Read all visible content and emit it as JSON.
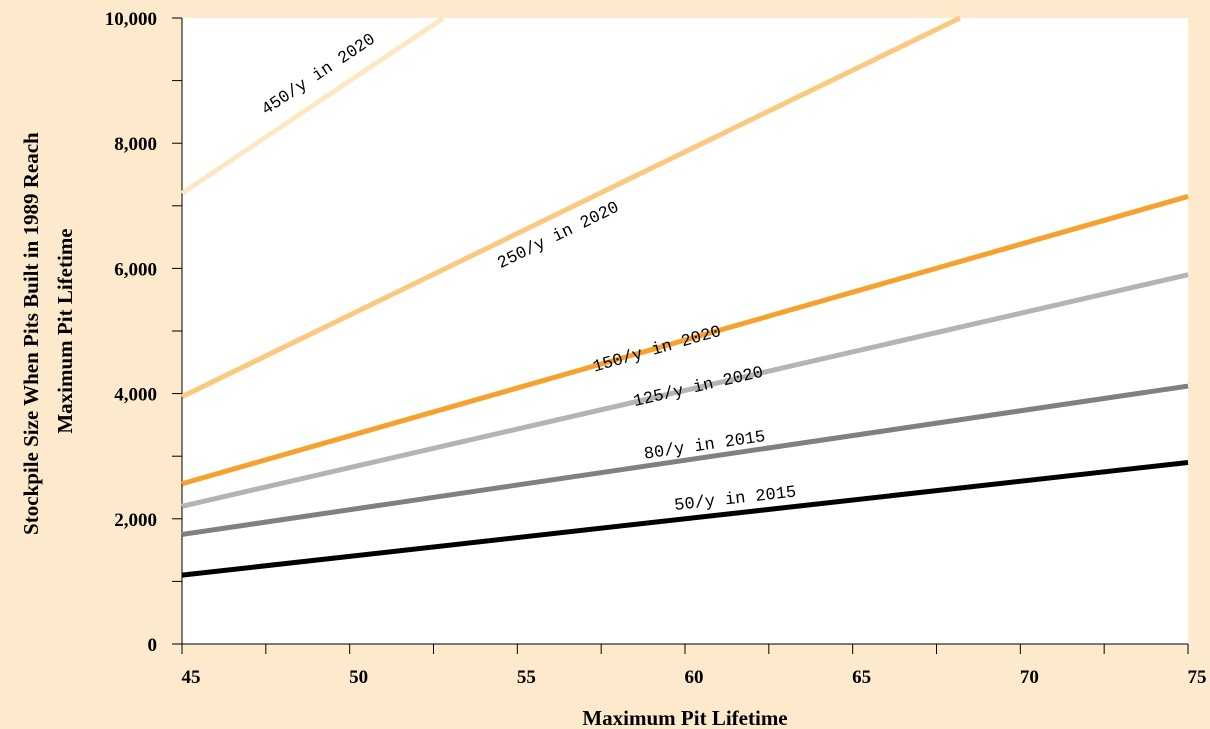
{
  "chart_data": {
    "type": "line",
    "xlabel": "Maximum Pit Lifetime",
    "ylabel_lines": [
      "Stockpile Size When Pits Built in 1989 Reach",
      "Maximum Pit Lifetime"
    ],
    "xlim": [
      45,
      75
    ],
    "ylim": [
      0,
      10000
    ],
    "x_ticks": [
      45,
      50,
      55,
      60,
      65,
      70,
      75
    ],
    "x_tick_labels": [
      "45",
      "50",
      "55",
      "60",
      "65",
      "70",
      "75"
    ],
    "y_ticks": [
      0,
      2000,
      4000,
      6000,
      8000,
      10000
    ],
    "y_tick_labels": [
      "0",
      "2,000",
      "4,000",
      "6,000",
      "8,000",
      "10,000"
    ],
    "grid": false,
    "series": [
      {
        "name": "450/y in 2020",
        "color": "#fde8c4",
        "x": [
          45,
          52.8
        ],
        "y": [
          7200,
          10000
        ],
        "label_x": 47.5,
        "label_y": 8450
      },
      {
        "name": "250/y in 2020",
        "color": "#fac97e",
        "x": [
          45,
          68.2
        ],
        "y": [
          3950,
          10000
        ],
        "label_x": 54.5,
        "label_y": 6000
      },
      {
        "name": "150/y in 2020",
        "color": "#f7a02c",
        "x": [
          45,
          75
        ],
        "y": [
          2560,
          7150
        ],
        "label_x": 57.3,
        "label_y": 4350
      },
      {
        "name": "125/y in 2020",
        "color": "#b4b4b4",
        "x": [
          45,
          75
        ],
        "y": [
          2200,
          5900
        ],
        "label_x": 58.5,
        "label_y": 3800
      },
      {
        "name": "80/y in 2015",
        "color": "#808080",
        "x": [
          45,
          75
        ],
        "y": [
          1750,
          4120
        ],
        "label_x": 58.8,
        "label_y": 2960
      },
      {
        "name": "50/y in 2015",
        "color": "#000000",
        "x": [
          45,
          75
        ],
        "y": [
          1100,
          2900
        ],
        "label_x": 59.7,
        "label_y": 2140
      }
    ]
  }
}
